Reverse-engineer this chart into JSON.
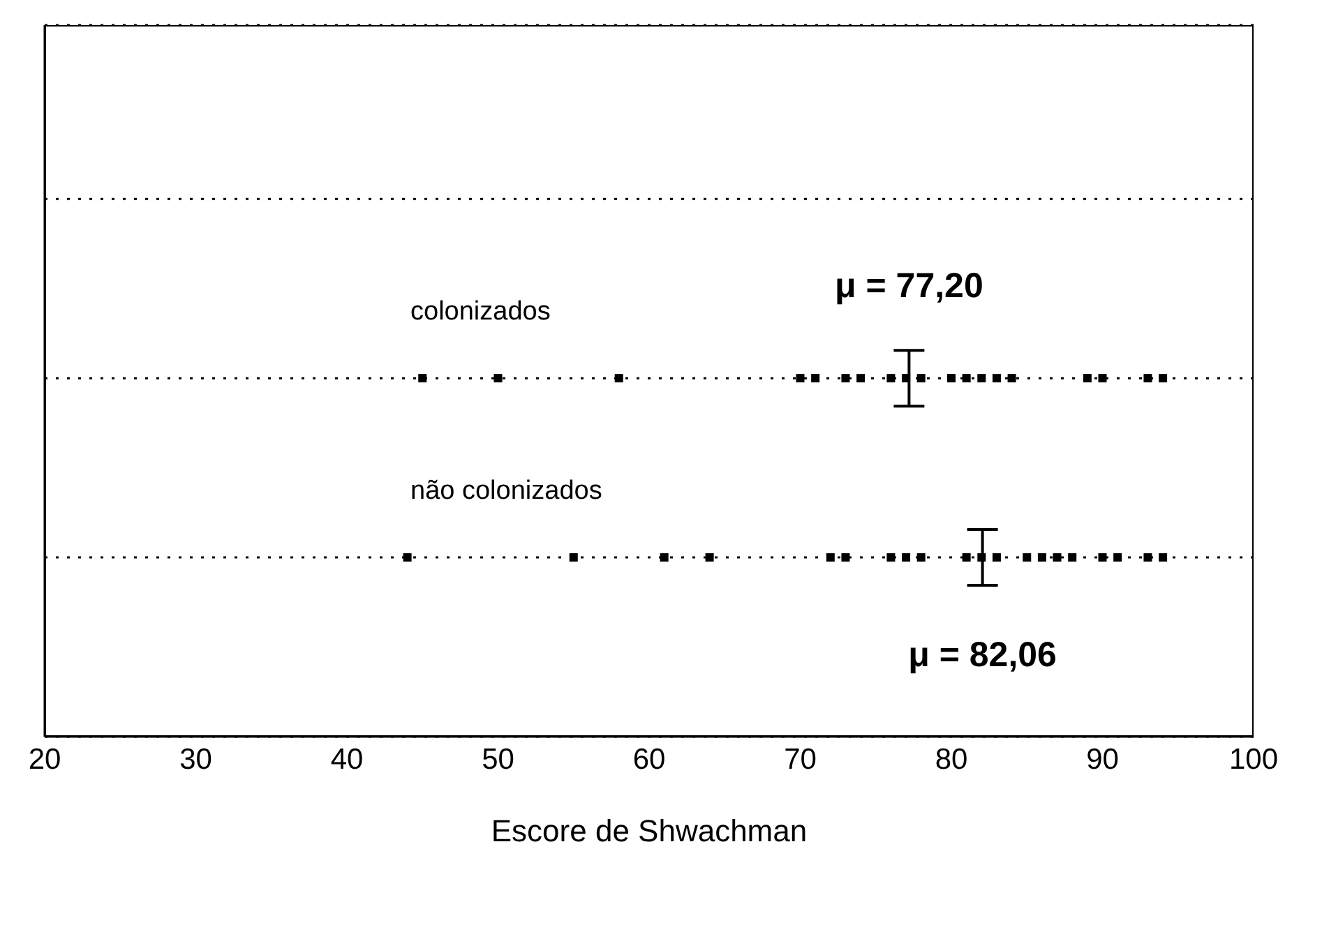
{
  "chart_data": {
    "type": "scatter",
    "orientation": "horizontal",
    "xlabel": "Escore de Shwachman",
    "xlim": [
      20,
      100
    ],
    "xticks": [
      20,
      30,
      40,
      50,
      60,
      70,
      80,
      90,
      100
    ],
    "categories": [
      null,
      "colonizados",
      "não colonizados"
    ],
    "grid": "y",
    "marker": "square",
    "legend": false,
    "series": [
      {
        "color": "#000000",
        "x": [
          "colonizados",
          "colonizados",
          "colonizados",
          "colonizados",
          "colonizados",
          "colonizados",
          "colonizados",
          "colonizados",
          "colonizados",
          "colonizados",
          "colonizados",
          "colonizados",
          "colonizados",
          "colonizados",
          "colonizados",
          "colonizados",
          "colonizados",
          "colonizados",
          "colonizados"
        ],
        "values": [
          45,
          50,
          58,
          70,
          71,
          73,
          74,
          76,
          77,
          78,
          80,
          81,
          82,
          83,
          84,
          89,
          90,
          93,
          94
        ]
      },
      {
        "color": "#000000",
        "x": [
          "não colonizados",
          "não colonizados",
          "não colonizados",
          "não colonizados",
          "não colonizados",
          "não colonizados",
          "não colonizados",
          "não colonizados",
          "não colonizados",
          "não colonizados",
          "não colonizados",
          "não colonizados",
          "não colonizados",
          "não colonizados",
          "não colonizados",
          "não colonizados",
          "não colonizados",
          "não colonizados",
          "não colonizados",
          "não colonizados"
        ],
        "values": [
          44,
          55,
          61,
          64,
          72,
          73,
          76,
          77,
          78,
          81,
          82,
          83,
          85,
          86,
          87,
          88,
          90,
          91,
          93,
          94
        ]
      }
    ],
    "annotations": [
      {
        "text": "μ = 77,20",
        "x": 77.2,
        "y": "colonizados"
      },
      {
        "text": "μ = 82,06",
        "x": 82.06,
        "y": "não colonizados"
      }
    ]
  }
}
